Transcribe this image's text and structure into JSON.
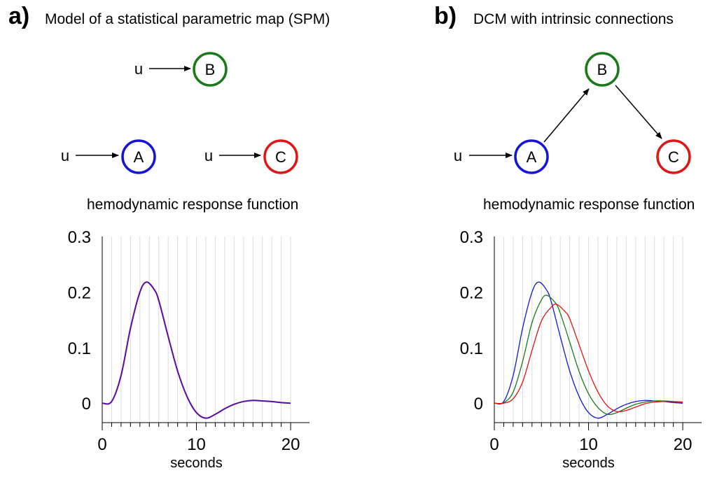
{
  "panel_a": {
    "label": "a)",
    "title": "Model of a statistical parametric map (SPM)",
    "input_label": "u",
    "nodes": [
      {
        "id": "B",
        "label": "B",
        "color": "#1a7a1a"
      },
      {
        "id": "A",
        "label": "A",
        "color": "#1515d6"
      },
      {
        "id": "C",
        "label": "C",
        "color": "#e01515"
      }
    ],
    "hrf_title": "hemodynamic response function"
  },
  "panel_b": {
    "label": "b)",
    "title": "DCM with intrinsic connections",
    "input_label": "u",
    "nodes": [
      {
        "id": "B",
        "label": "B",
        "color": "#1a7a1a"
      },
      {
        "id": "A",
        "label": "A",
        "color": "#1515d6"
      },
      {
        "id": "C",
        "label": "C",
        "color": "#e01515"
      }
    ],
    "edges": [
      [
        "A",
        "B"
      ],
      [
        "B",
        "C"
      ]
    ],
    "hrf_title": "hemodynamic response function"
  },
  "chart_data": [
    {
      "type": "line",
      "xlabel": "seconds",
      "xlim": [
        0,
        22
      ],
      "ylim": [
        -0.035,
        0.3
      ],
      "xticks": [
        0,
        10,
        20
      ],
      "yticks": [
        0,
        0.1,
        0.2,
        0.3
      ],
      "ytick_labels": [
        "0",
        "0.1",
        "0.2",
        "0.3"
      ],
      "minor_xtick_step": 1,
      "grid": "vertical-minor",
      "series": [
        {
          "color": "#5b0a9e",
          "x": [
            0,
            1,
            2,
            3,
            4,
            4.7,
            5.5,
            6,
            7,
            8,
            9,
            10,
            11,
            12,
            13,
            14,
            15,
            16,
            17,
            18,
            19,
            20
          ],
          "values": [
            0,
            0.003,
            0.05,
            0.135,
            0.2,
            0.218,
            0.205,
            0.185,
            0.12,
            0.058,
            0.012,
            -0.017,
            -0.027,
            -0.02,
            -0.01,
            -0.002,
            0.003,
            0.005,
            0.004,
            0.003,
            0.001,
            0
          ]
        }
      ]
    },
    {
      "type": "line",
      "xlabel": "seconds",
      "xlim": [
        0,
        22
      ],
      "ylim": [
        -0.035,
        0.3
      ],
      "xticks": [
        0,
        10,
        20
      ],
      "yticks": [
        0,
        0.1,
        0.2,
        0.3
      ],
      "ytick_labels": [
        "0",
        "0.1",
        "0.2",
        "0.3"
      ],
      "minor_xtick_step": 1,
      "grid": "vertical-minor",
      "series": [
        {
          "color": "#1515d6",
          "x": [
            0,
            1,
            2,
            3,
            4,
            4.7,
            5.5,
            6,
            7,
            8,
            9,
            10,
            11,
            12,
            13,
            14,
            15,
            16,
            17,
            18,
            19,
            20
          ],
          "values": [
            0,
            0.003,
            0.05,
            0.135,
            0.2,
            0.218,
            0.205,
            0.185,
            0.12,
            0.058,
            0.012,
            -0.017,
            -0.027,
            -0.02,
            -0.01,
            -0.002,
            0.003,
            0.005,
            0.004,
            0.003,
            0.001,
            0
          ]
        },
        {
          "color": "#1a7a1a",
          "x": [
            0,
            1,
            2,
            3,
            4,
            5,
            5.6,
            6.5,
            7,
            8,
            9,
            10,
            11,
            12,
            13,
            14,
            15,
            16,
            17,
            18,
            19,
            20
          ],
          "values": [
            0,
            0.001,
            0.02,
            0.075,
            0.145,
            0.186,
            0.194,
            0.18,
            0.162,
            0.11,
            0.057,
            0.017,
            -0.008,
            -0.02,
            -0.017,
            -0.009,
            -0.002,
            0.002,
            0.004,
            0.004,
            0.003,
            0.001
          ]
        },
        {
          "color": "#e01515",
          "x": [
            0,
            1,
            2,
            3,
            4,
            5,
            6,
            6.6,
            7.5,
            8,
            9,
            10,
            11,
            12,
            13,
            14,
            15,
            16,
            17,
            18,
            19,
            20
          ],
          "values": [
            0,
            0,
            0.008,
            0.038,
            0.095,
            0.148,
            0.172,
            0.178,
            0.165,
            0.152,
            0.105,
            0.058,
            0.02,
            -0.005,
            -0.015,
            -0.013,
            -0.007,
            -0.001,
            0.002,
            0.003,
            0.003,
            0.002
          ]
        }
      ]
    }
  ]
}
